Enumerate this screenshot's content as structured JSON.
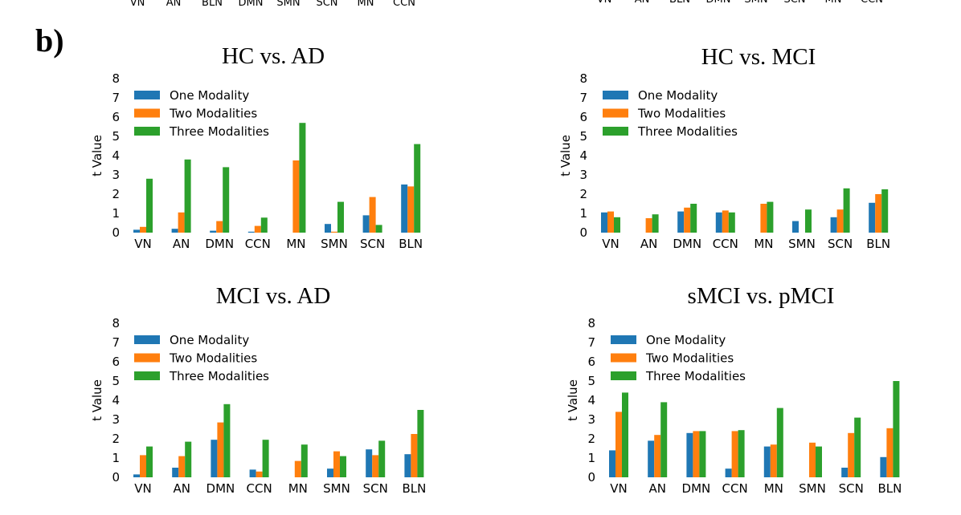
{
  "panel_label": "b)",
  "top_cut_labels_left": [
    "VN",
    "AN",
    "BLN",
    "DMN",
    "SMN",
    "SCN",
    "MN",
    "CCN"
  ],
  "top_cut_labels_right": [
    "VN",
    "AN",
    "BLN",
    "DMN",
    "SMN",
    "SCN",
    "MN",
    "CCN"
  ],
  "colors": {
    "one": "#1f77b4",
    "two": "#ff7f0e",
    "three": "#2ca02c"
  },
  "chart_data": [
    {
      "type": "bar",
      "title": "HC vs. AD",
      "ylabel": "t Value",
      "xlabel": "",
      "ylim": [
        0,
        8
      ],
      "yticks": [
        0,
        1,
        2,
        3,
        4,
        5,
        6,
        7,
        8
      ],
      "legend_position": "top-left",
      "categories": [
        "VN",
        "AN",
        "DMN",
        "CCN",
        "MN",
        "SMN",
        "SCN",
        "BLN"
      ],
      "series": [
        {
          "name": "One Modality",
          "color": "#1f77b4",
          "values": [
            0.15,
            0.2,
            0.1,
            0.05,
            0,
            0.45,
            0.9,
            2.5
          ]
        },
        {
          "name": "Two Modalities",
          "color": "#ff7f0e",
          "values": [
            0.3,
            1.05,
            0.6,
            0.35,
            3.75,
            0.05,
            1.85,
            2.4
          ]
        },
        {
          "name": "Three Modalities",
          "color": "#2ca02c",
          "values": [
            2.8,
            3.8,
            3.4,
            0.78,
            5.7,
            1.6,
            0.4,
            4.6
          ]
        }
      ]
    },
    {
      "type": "bar",
      "title": "HC vs. MCI",
      "ylabel": "t Value",
      "xlabel": "",
      "ylim": [
        0,
        8
      ],
      "yticks": [
        0,
        1,
        2,
        3,
        4,
        5,
        6,
        7,
        8
      ],
      "legend_position": "top-left",
      "categories": [
        "VN",
        "AN",
        "DMN",
        "CCN",
        "MN",
        "SMN",
        "SCN",
        "BLN"
      ],
      "series": [
        {
          "name": "One Modality",
          "color": "#1f77b4",
          "values": [
            1.05,
            0,
            1.1,
            1.05,
            0,
            0.6,
            0.8,
            1.55
          ]
        },
        {
          "name": "Two Modalities",
          "color": "#ff7f0e",
          "values": [
            1.1,
            0.75,
            1.3,
            1.15,
            1.5,
            0,
            1.2,
            2.0
          ]
        },
        {
          "name": "Three Modalities",
          "color": "#2ca02c",
          "values": [
            0.8,
            0.95,
            1.5,
            1.05,
            1.6,
            1.2,
            2.3,
            2.25
          ]
        }
      ]
    },
    {
      "type": "bar",
      "title": "MCI vs. AD",
      "ylabel": "t Value",
      "xlabel": "",
      "ylim": [
        0,
        8
      ],
      "yticks": [
        0,
        1,
        2,
        3,
        4,
        5,
        6,
        7,
        8
      ],
      "legend_position": "top-left",
      "categories": [
        "VN",
        "AN",
        "DMN",
        "CCN",
        "MN",
        "SMN",
        "SCN",
        "BLN"
      ],
      "series": [
        {
          "name": "One Modality",
          "color": "#1f77b4",
          "values": [
            0.15,
            0.5,
            1.95,
            0.4,
            0,
            0.45,
            1.45,
            1.2
          ]
        },
        {
          "name": "Two Modalities",
          "color": "#ff7f0e",
          "values": [
            1.15,
            1.1,
            2.85,
            0.3,
            0.85,
            1.35,
            1.15,
            2.25
          ]
        },
        {
          "name": "Three Modalities",
          "color": "#2ca02c",
          "values": [
            1.6,
            1.85,
            3.8,
            1.95,
            1.7,
            1.1,
            1.9,
            3.5
          ]
        }
      ]
    },
    {
      "type": "bar",
      "title": "sMCI vs. pMCI",
      "ylabel": "t Value",
      "xlabel": "",
      "ylim": [
        0,
        8
      ],
      "yticks": [
        0,
        1,
        2,
        3,
        4,
        5,
        6,
        7,
        8
      ],
      "legend_position": "top-left",
      "categories": [
        "VN",
        "AN",
        "DMN",
        "CCN",
        "MN",
        "SMN",
        "SCN",
        "BLN"
      ],
      "series": [
        {
          "name": "One Modality",
          "color": "#1f77b4",
          "values": [
            1.4,
            1.9,
            2.3,
            0.45,
            1.6,
            0,
            0.5,
            1.05
          ]
        },
        {
          "name": "Two Modalities",
          "color": "#ff7f0e",
          "values": [
            3.4,
            2.2,
            2.4,
            2.4,
            1.7,
            1.8,
            2.3,
            2.55
          ]
        },
        {
          "name": "Three Modalities",
          "color": "#2ca02c",
          "values": [
            4.4,
            3.9,
            2.4,
            2.45,
            3.6,
            1.6,
            3.1,
            5.0
          ]
        }
      ]
    }
  ]
}
